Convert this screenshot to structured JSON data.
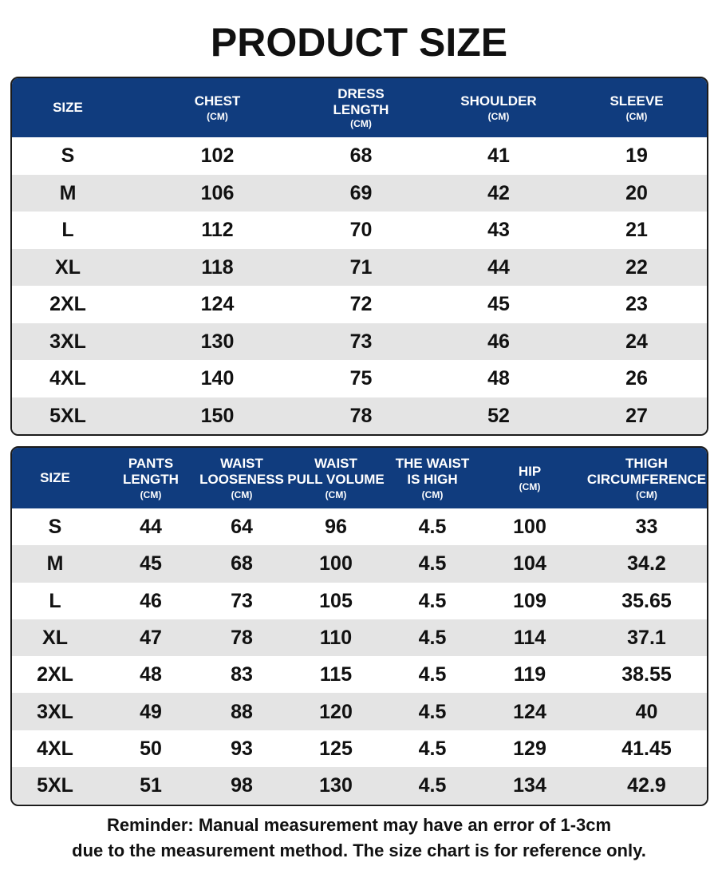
{
  "title": "PRODUCT SIZE",
  "table1": {
    "headers": [
      {
        "name": "SIZE",
        "unit": ""
      },
      {
        "name": "CHEST",
        "unit": "(CM)"
      },
      {
        "name_lines": [
          "DRESS",
          "LENGTH"
        ],
        "unit": "(CM)"
      },
      {
        "name": "SHOULDER",
        "unit": "(CM)"
      },
      {
        "name": "SLEEVE",
        "unit": "(CM)"
      }
    ],
    "rows": [
      [
        "S",
        "102",
        "68",
        "41",
        "19"
      ],
      [
        "M",
        "106",
        "69",
        "42",
        "20"
      ],
      [
        "L",
        "112",
        "70",
        "43",
        "21"
      ],
      [
        "XL",
        "118",
        "71",
        "44",
        "22"
      ],
      [
        "2XL",
        "124",
        "72",
        "45",
        "23"
      ],
      [
        "3XL",
        "130",
        "73",
        "46",
        "24"
      ],
      [
        "4XL",
        "140",
        "75",
        "48",
        "26"
      ],
      [
        "5XL",
        "150",
        "78",
        "52",
        "27"
      ]
    ]
  },
  "table2": {
    "headers": [
      {
        "name_lines": [
          "SIZE"
        ],
        "unit": ""
      },
      {
        "name_lines": [
          "PANTS",
          "LENGTH"
        ],
        "unit": "(CM)"
      },
      {
        "name_lines": [
          "WAIST",
          "LOOSENESS"
        ],
        "unit": "(CM)"
      },
      {
        "name_lines": [
          "WAIST",
          "PULL VOLUME"
        ],
        "unit": "(CM)"
      },
      {
        "name_lines": [
          "THE WAIST",
          "IS HIGH"
        ],
        "unit": "(CM)"
      },
      {
        "name_lines": [
          "HIP"
        ],
        "unit": "(CM)"
      },
      {
        "name_lines": [
          "THIGH",
          "CIRCUMFERENCE"
        ],
        "unit": "(CM)"
      }
    ],
    "rows": [
      [
        "S",
        "44",
        "64",
        "96",
        "4.5",
        "100",
        "33"
      ],
      [
        "M",
        "45",
        "68",
        "100",
        "4.5",
        "104",
        "34.2"
      ],
      [
        "L",
        "46",
        "73",
        "105",
        "4.5",
        "109",
        "35.65"
      ],
      [
        "XL",
        "47",
        "78",
        "110",
        "4.5",
        "114",
        "37.1"
      ],
      [
        "2XL",
        "48",
        "83",
        "115",
        "4.5",
        "119",
        "38.55"
      ],
      [
        "3XL",
        "49",
        "88",
        "120",
        "4.5",
        "124",
        "40"
      ],
      [
        "4XL",
        "50",
        "93",
        "125",
        "4.5",
        "129",
        "41.45"
      ],
      [
        "5XL",
        "51",
        "98",
        "130",
        "4.5",
        "134",
        "42.9"
      ]
    ]
  },
  "reminder": {
    "line1": "Reminder: Manual measurement may have an error of 1-3cm",
    "line2": "due to the measurement method. The size chart is for reference only."
  },
  "colors": {
    "header_bg": "#103c7e",
    "alt_row_bg": "#e4e4e4",
    "text": "#111111"
  }
}
